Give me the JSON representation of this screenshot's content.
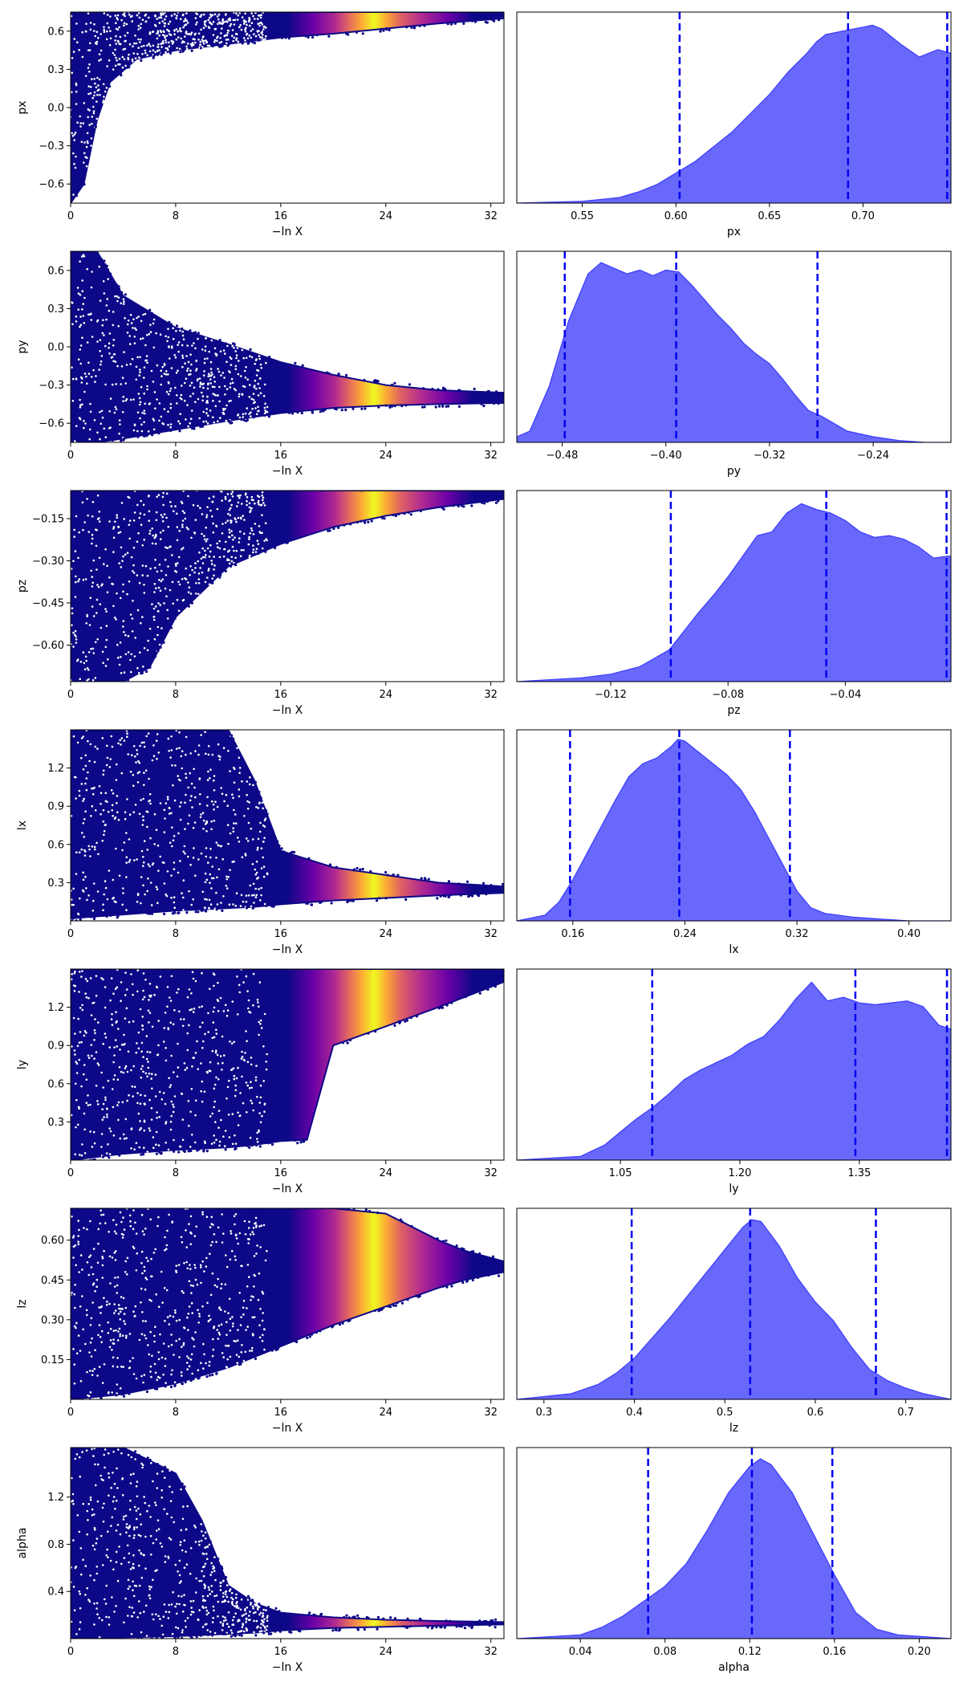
{
  "colors": {
    "posterior_fill": "#6363fb",
    "posterior_edge": "#3b3bff",
    "quantile_line": "#0000ee",
    "scatter_low": "#0d0887",
    "colormap": [
      "#0d0887",
      "#6a00a8",
      "#b12a90",
      "#e16462",
      "#fca636",
      "#f0f921"
    ]
  },
  "chart_data": [
    {
      "type": "scatter",
      "param": "px",
      "ylabel": "px",
      "xlabel": "−ln X",
      "xlim": [
        0,
        33
      ],
      "ylim": [
        -0.75,
        0.75
      ],
      "xticks": [
        "0",
        "8",
        "16",
        "24",
        "32"
      ],
      "xtick_values": [
        0,
        8,
        16,
        24,
        32
      ],
      "yticks": [
        "−0.6",
        "−0.3",
        "0.0",
        "0.3",
        "0.6"
      ],
      "ytick_values": [
        -0.6,
        -0.3,
        0.0,
        0.3,
        0.6
      ],
      "envelope": {
        "x": [
          0,
          1,
          2,
          3,
          5,
          8,
          12,
          16,
          20,
          24,
          28,
          33
        ],
        "lower": [
          -0.75,
          -0.6,
          -0.1,
          0.2,
          0.38,
          0.45,
          0.5,
          0.55,
          0.58,
          0.62,
          0.66,
          0.7
        ],
        "upper": [
          0.75,
          0.75,
          0.75,
          0.75,
          0.75,
          0.75,
          0.75,
          0.75,
          0.75,
          0.75,
          0.75,
          0.75
        ]
      },
      "weight_peak": 22.5
    },
    {
      "type": "area",
      "param": "px",
      "xlabel": "px",
      "xlim": [
        0.515,
        0.747
      ],
      "xticks": [
        "0.55",
        "0.60",
        "0.65",
        "0.70"
      ],
      "xtick_values": [
        0.55,
        0.6,
        0.65,
        0.7
      ],
      "x": [
        0.515,
        0.55,
        0.57,
        0.58,
        0.59,
        0.6,
        0.61,
        0.62,
        0.63,
        0.64,
        0.65,
        0.66,
        0.67,
        0.675,
        0.68,
        0.69,
        0.7,
        0.705,
        0.71,
        0.72,
        0.73,
        0.74,
        0.747
      ],
      "density": [
        0.0,
        0.01,
        0.03,
        0.06,
        0.1,
        0.16,
        0.22,
        0.3,
        0.38,
        0.48,
        0.58,
        0.7,
        0.8,
        0.86,
        0.9,
        0.92,
        0.94,
        0.95,
        0.93,
        0.85,
        0.78,
        0.82,
        0.8
      ],
      "quantiles": [
        0.602,
        0.692,
        0.745
      ]
    },
    {
      "type": "scatter",
      "param": "py",
      "ylabel": "py",
      "xlabel": "−ln X",
      "xlim": [
        0,
        33
      ],
      "ylim": [
        -0.75,
        0.75
      ],
      "xticks": [
        "0",
        "8",
        "16",
        "24",
        "32"
      ],
      "xtick_values": [
        0,
        8,
        16,
        24,
        32
      ],
      "yticks": [
        "−0.6",
        "−0.3",
        "0.0",
        "0.3",
        "0.6"
      ],
      "ytick_values": [
        -0.6,
        -0.3,
        0.0,
        0.3,
        0.6
      ],
      "envelope": {
        "x": [
          0,
          2,
          4,
          8,
          12,
          16,
          20,
          24,
          28,
          33
        ],
        "lower": [
          -0.75,
          -0.75,
          -0.72,
          -0.65,
          -0.58,
          -0.52,
          -0.48,
          -0.46,
          -0.45,
          -0.44
        ],
        "upper": [
          0.75,
          0.75,
          0.4,
          0.15,
          0.02,
          -0.12,
          -0.22,
          -0.3,
          -0.34,
          -0.36
        ]
      },
      "weight_peak": 22.5
    },
    {
      "type": "area",
      "param": "py",
      "xlabel": "py",
      "xlim": [
        -0.515,
        -0.18
      ],
      "xticks": [
        "−0.48",
        "−0.40",
        "−0.32",
        "−0.24"
      ],
      "xtick_values": [
        -0.48,
        -0.4,
        -0.32,
        -0.24
      ],
      "x": [
        -0.515,
        -0.505,
        -0.49,
        -0.475,
        -0.46,
        -0.45,
        -0.44,
        -0.43,
        -0.42,
        -0.41,
        -0.4,
        -0.39,
        -0.38,
        -0.37,
        -0.36,
        -0.35,
        -0.34,
        -0.33,
        -0.32,
        -0.31,
        -0.3,
        -0.29,
        -0.28,
        -0.27,
        -0.26,
        -0.24,
        -0.22,
        -0.2,
        -0.18
      ],
      "density": [
        0.03,
        0.06,
        0.3,
        0.65,
        0.9,
        0.96,
        0.93,
        0.9,
        0.92,
        0.89,
        0.92,
        0.91,
        0.84,
        0.76,
        0.68,
        0.61,
        0.53,
        0.47,
        0.42,
        0.34,
        0.25,
        0.17,
        0.14,
        0.1,
        0.06,
        0.03,
        0.01,
        0.0,
        0.0
      ],
      "quantiles": [
        -0.478,
        -0.392,
        -0.283
      ]
    },
    {
      "type": "scatter",
      "param": "pz",
      "ylabel": "pz",
      "xlabel": "−ln X",
      "xlim": [
        0,
        33
      ],
      "ylim": [
        -0.73,
        -0.05
      ],
      "xticks": [
        "0",
        "8",
        "16",
        "24",
        "32"
      ],
      "xtick_values": [
        0,
        8,
        16,
        24,
        32
      ],
      "yticks": [
        "−0.60",
        "−0.45",
        "−0.30",
        "−0.15"
      ],
      "ytick_values": [
        -0.6,
        -0.45,
        -0.3,
        -0.15
      ],
      "envelope": {
        "x": [
          0,
          2,
          4,
          6,
          8,
          12,
          16,
          20,
          24,
          28,
          33
        ],
        "lower": [
          -0.73,
          -0.73,
          -0.73,
          -0.68,
          -0.5,
          -0.32,
          -0.24,
          -0.18,
          -0.14,
          -0.11,
          -0.08
        ],
        "upper": [
          -0.05,
          -0.05,
          -0.05,
          -0.05,
          -0.05,
          -0.05,
          -0.05,
          -0.05,
          -0.05,
          -0.05,
          -0.05
        ]
      },
      "weight_peak": 22.5
    },
    {
      "type": "area",
      "param": "pz",
      "xlabel": "pz",
      "xlim": [
        -0.152,
        -0.004
      ],
      "xticks": [
        "−0.12",
        "−0.08",
        "−0.04"
      ],
      "xtick_values": [
        -0.12,
        -0.08,
        -0.04
      ],
      "x": [
        -0.152,
        -0.13,
        -0.12,
        -0.11,
        -0.1,
        -0.095,
        -0.09,
        -0.085,
        -0.08,
        -0.075,
        -0.07,
        -0.065,
        -0.06,
        -0.055,
        -0.05,
        -0.045,
        -0.04,
        -0.035,
        -0.03,
        -0.025,
        -0.02,
        -0.015,
        -0.01,
        -0.005,
        -0.004
      ],
      "density": [
        0.0,
        0.02,
        0.04,
        0.08,
        0.17,
        0.27,
        0.37,
        0.46,
        0.56,
        0.67,
        0.78,
        0.8,
        0.9,
        0.95,
        0.92,
        0.9,
        0.86,
        0.8,
        0.77,
        0.78,
        0.76,
        0.72,
        0.66,
        0.67,
        0.67
      ],
      "quantiles": [
        -0.0995,
        -0.0465,
        -0.0055
      ]
    },
    {
      "type": "scatter",
      "param": "lx",
      "ylabel": "lx",
      "xlabel": "−ln X",
      "xlim": [
        0,
        33
      ],
      "ylim": [
        0.0,
        1.5
      ],
      "xticks": [
        "0",
        "8",
        "16",
        "24",
        "32"
      ],
      "xtick_values": [
        0,
        8,
        16,
        24,
        32
      ],
      "yticks": [
        "0.3",
        "0.6",
        "0.9",
        "1.2"
      ],
      "ytick_values": [
        0.3,
        0.6,
        0.9,
        1.2
      ],
      "envelope": {
        "x": [
          0,
          4,
          8,
          12,
          14,
          16,
          20,
          24,
          28,
          33
        ],
        "lower": [
          0.02,
          0.05,
          0.08,
          0.1,
          0.11,
          0.13,
          0.16,
          0.18,
          0.2,
          0.22
        ],
        "upper": [
          1.5,
          1.5,
          1.5,
          1.5,
          1.1,
          0.55,
          0.42,
          0.36,
          0.3,
          0.27
        ]
      },
      "weight_peak": 22.5
    },
    {
      "type": "area",
      "param": "lx",
      "xlabel": "lx",
      "xlim": [
        0.12,
        0.43
      ],
      "xticks": [
        "0.16",
        "0.24",
        "0.32",
        "0.40"
      ],
      "xtick_values": [
        0.16,
        0.24,
        0.32,
        0.4
      ],
      "x": [
        0.12,
        0.14,
        0.15,
        0.16,
        0.17,
        0.18,
        0.19,
        0.2,
        0.21,
        0.22,
        0.23,
        0.235,
        0.24,
        0.25,
        0.26,
        0.27,
        0.28,
        0.29,
        0.3,
        0.31,
        0.32,
        0.33,
        0.34,
        0.36,
        0.38,
        0.4,
        0.43
      ],
      "density": [
        0.0,
        0.03,
        0.1,
        0.22,
        0.36,
        0.5,
        0.64,
        0.77,
        0.84,
        0.87,
        0.93,
        0.97,
        0.96,
        0.9,
        0.84,
        0.78,
        0.7,
        0.58,
        0.44,
        0.3,
        0.16,
        0.07,
        0.04,
        0.02,
        0.01,
        0.0,
        0.0
      ],
      "quantiles": [
        0.158,
        0.236,
        0.315
      ]
    },
    {
      "type": "scatter",
      "param": "ly",
      "ylabel": "ly",
      "xlabel": "−ln X",
      "xlim": [
        0,
        33
      ],
      "ylim": [
        0.0,
        1.5
      ],
      "xticks": [
        "0",
        "8",
        "16",
        "24",
        "32"
      ],
      "xtick_values": [
        0,
        8,
        16,
        24,
        32
      ],
      "yticks": [
        "0.3",
        "0.6",
        "0.9",
        "1.2"
      ],
      "ytick_values": [
        0.3,
        0.6,
        0.9,
        1.2
      ],
      "envelope": {
        "x": [
          0,
          4,
          8,
          12,
          14,
          16,
          18,
          20,
          24,
          28,
          33
        ],
        "lower": [
          0.0,
          0.05,
          0.08,
          0.1,
          0.12,
          0.15,
          0.16,
          0.9,
          1.05,
          1.2,
          1.4
        ],
        "upper": [
          1.5,
          1.5,
          1.5,
          1.5,
          1.5,
          1.5,
          1.5,
          1.5,
          1.5,
          1.5,
          1.5
        ]
      },
      "weight_peak": 22.5
    },
    {
      "type": "area",
      "param": "ly",
      "xlabel": "ly",
      "xlim": [
        0.92,
        1.465
      ],
      "xticks": [
        "1.05",
        "1.20",
        "1.35"
      ],
      "xtick_values": [
        1.05,
        1.2,
        1.35
      ],
      "x": [
        0.92,
        1.0,
        1.03,
        1.05,
        1.07,
        1.09,
        1.11,
        1.13,
        1.15,
        1.17,
        1.19,
        1.21,
        1.23,
        1.25,
        1.27,
        1.29,
        1.31,
        1.33,
        1.35,
        1.37,
        1.39,
        1.41,
        1.43,
        1.45,
        1.465
      ],
      "density": [
        0.0,
        0.02,
        0.08,
        0.15,
        0.22,
        0.28,
        0.35,
        0.43,
        0.48,
        0.52,
        0.56,
        0.62,
        0.66,
        0.75,
        0.86,
        0.95,
        0.85,
        0.87,
        0.84,
        0.83,
        0.84,
        0.85,
        0.82,
        0.72,
        0.7
      ],
      "quantiles": [
        1.09,
        1.345,
        1.46
      ]
    },
    {
      "type": "scatter",
      "param": "lz",
      "ylabel": "lz",
      "xlabel": "−ln X",
      "xlim": [
        0,
        33
      ],
      "ylim": [
        0.0,
        0.72
      ],
      "xticks": [
        "0",
        "8",
        "16",
        "24",
        "32"
      ],
      "xtick_values": [
        0,
        8,
        16,
        24,
        32
      ],
      "yticks": [
        "0.15",
        "0.30",
        "0.45",
        "0.60"
      ],
      "ytick_values": [
        0.15,
        0.3,
        0.45,
        0.6
      ],
      "envelope": {
        "x": [
          0,
          4,
          8,
          12,
          16,
          20,
          24,
          28,
          30,
          33
        ],
        "lower": [
          0.0,
          0.02,
          0.06,
          0.12,
          0.2,
          0.28,
          0.35,
          0.42,
          0.45,
          0.48
        ],
        "upper": [
          0.72,
          0.72,
          0.72,
          0.72,
          0.72,
          0.72,
          0.7,
          0.6,
          0.56,
          0.52
        ]
      },
      "weight_peak": 22.5
    },
    {
      "type": "area",
      "param": "lz",
      "xlabel": "lz",
      "xlim": [
        0.27,
        0.75
      ],
      "xticks": [
        "0.3",
        "0.4",
        "0.5",
        "0.6",
        "0.7"
      ],
      "xtick_values": [
        0.3,
        0.4,
        0.5,
        0.6,
        0.7
      ],
      "x": [
        0.27,
        0.33,
        0.36,
        0.38,
        0.4,
        0.42,
        0.44,
        0.46,
        0.48,
        0.5,
        0.52,
        0.53,
        0.54,
        0.56,
        0.58,
        0.6,
        0.62,
        0.64,
        0.66,
        0.68,
        0.7,
        0.72,
        0.75
      ],
      "density": [
        0.0,
        0.03,
        0.08,
        0.14,
        0.22,
        0.33,
        0.44,
        0.56,
        0.68,
        0.8,
        0.92,
        0.96,
        0.95,
        0.82,
        0.65,
        0.52,
        0.42,
        0.28,
        0.16,
        0.1,
        0.06,
        0.03,
        0.0
      ],
      "quantiles": [
        0.397,
        0.528,
        0.667
      ]
    },
    {
      "type": "scatter",
      "param": "alpha",
      "ylabel": "alpha",
      "xlabel": "−ln X",
      "xlim": [
        0,
        33
      ],
      "ylim": [
        0.0,
        1.62
      ],
      "xticks": [
        "0",
        "8",
        "16",
        "24",
        "32"
      ],
      "xtick_values": [
        0,
        8,
        16,
        24,
        32
      ],
      "yticks": [
        "0.4",
        "0.8",
        "1.2"
      ],
      "ytick_values": [
        0.4,
        0.8,
        1.2
      ],
      "envelope": {
        "x": [
          0,
          4,
          8,
          10,
          12,
          14,
          16,
          20,
          24,
          28,
          33
        ],
        "lower": [
          0.0,
          0.01,
          0.02,
          0.03,
          0.04,
          0.05,
          0.07,
          0.09,
          0.1,
          0.11,
          0.12
        ],
        "upper": [
          1.62,
          1.62,
          1.4,
          1.0,
          0.45,
          0.3,
          0.22,
          0.18,
          0.16,
          0.15,
          0.14
        ]
      },
      "weight_peak": 22.5
    },
    {
      "type": "area",
      "param": "alpha",
      "xlabel": "alpha",
      "xlim": [
        0.01,
        0.215
      ],
      "xticks": [
        "0.04",
        "0.08",
        "0.12",
        "0.16",
        "0.20"
      ],
      "xtick_values": [
        0.04,
        0.08,
        0.12,
        0.16,
        0.2
      ],
      "x": [
        0.01,
        0.04,
        0.05,
        0.06,
        0.07,
        0.08,
        0.09,
        0.1,
        0.11,
        0.12,
        0.125,
        0.13,
        0.14,
        0.15,
        0.16,
        0.17,
        0.18,
        0.19,
        0.215
      ],
      "density": [
        0.0,
        0.02,
        0.06,
        0.12,
        0.2,
        0.28,
        0.4,
        0.58,
        0.78,
        0.92,
        0.96,
        0.93,
        0.78,
        0.56,
        0.34,
        0.14,
        0.05,
        0.02,
        0.0
      ],
      "quantiles": [
        0.072,
        0.121,
        0.159
      ]
    }
  ]
}
